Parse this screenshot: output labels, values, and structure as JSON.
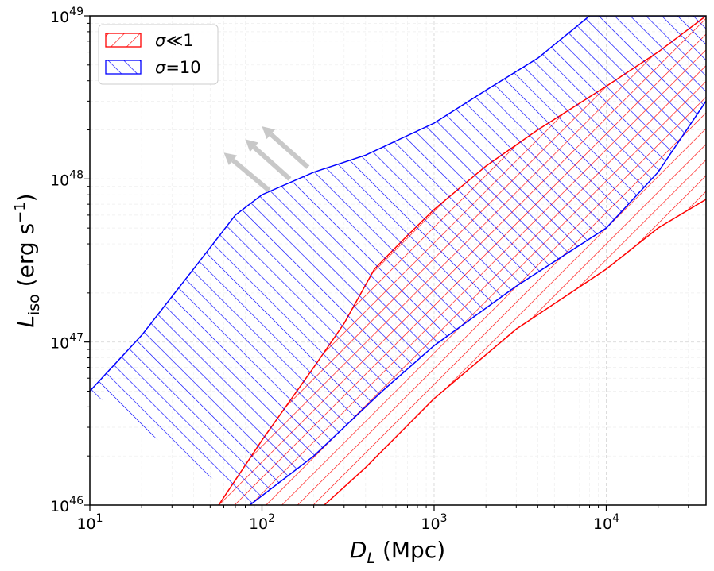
{
  "chart_data": {
    "type": "area",
    "xscale": "log",
    "yscale": "log",
    "xlim": [
      10,
      38000
    ],
    "ylim": [
      1e+46,
      1e+49
    ],
    "xlabel_main": "D",
    "xlabel_sub": "L",
    "xlabel_unit": "(Mpc)",
    "ylabel_main": "L",
    "ylabel_sub": "iso",
    "ylabel_unit_base": "(erg s",
    "ylabel_unit_sup": "−1",
    "ylabel_unit_close": ")",
    "x_ticks": [
      {
        "value": 10,
        "base": "10",
        "exp": "1"
      },
      {
        "value": 100,
        "base": "10",
        "exp": "2"
      },
      {
        "value": 1000,
        "base": "10",
        "exp": "3"
      },
      {
        "value": 10000,
        "base": "10",
        "exp": "4"
      }
    ],
    "y_ticks": [
      {
        "value": 1e+46,
        "base": "10",
        "exp": "46"
      },
      {
        "value": 1e+47,
        "base": "10",
        "exp": "47"
      },
      {
        "value": 1e+48,
        "base": "10",
        "exp": "48"
      },
      {
        "value": 1e+49,
        "base": "10",
        "exp": "49"
      }
    ],
    "grid": true,
    "legend_position": "top-left",
    "series": [
      {
        "name": "σ ≪ 1",
        "legend_symbol": "σ",
        "legend_relation": "≪",
        "legend_value": "1",
        "color": "#ff0000",
        "hatch": "forward",
        "upper": [
          [
            56,
            1e+46
          ],
          [
            100,
            2.5e+46
          ],
          [
            200,
            7e+46
          ],
          [
            300,
            1.3e+47
          ],
          [
            450,
            2.8e+47
          ],
          [
            700,
            4.5e+47
          ],
          [
            1000,
            6.5e+47
          ],
          [
            2000,
            1.2e+48
          ],
          [
            4000,
            2e+48
          ],
          [
            10000,
            3.7e+48
          ],
          [
            20000,
            6e+48
          ],
          [
            38000,
            1e+49
          ]
        ],
        "lower": [
          [
            230,
            1e+46
          ],
          [
            400,
            1.7e+46
          ],
          [
            1000,
            4.5e+46
          ],
          [
            3000,
            1.2e+47
          ],
          [
            10000,
            2.8e+47
          ],
          [
            20000,
            5e+47
          ],
          [
            38000,
            7.5e+47
          ]
        ]
      },
      {
        "name": "σ = 10",
        "legend_symbol": "σ",
        "legend_relation": "=",
        "legend_value": "10",
        "color": "#0000ff",
        "hatch": "backward",
        "upper": [
          [
            10,
            5e+46
          ],
          [
            20,
            1.1e+47
          ],
          [
            40,
            2.8e+47
          ],
          [
            70,
            6e+47
          ],
          [
            100,
            8e+47
          ],
          [
            200,
            1.1e+48
          ],
          [
            400,
            1.4e+48
          ],
          [
            1000,
            2.2e+48
          ],
          [
            2000,
            3.5e+48
          ],
          [
            4000,
            5.5e+48
          ],
          [
            8000,
            1e+49
          ],
          [
            38000,
            1e+49
          ]
        ],
        "lower": [
          [
            85,
            1e+46
          ],
          [
            200,
            2e+46
          ],
          [
            500,
            5e+46
          ],
          [
            1000,
            9.5e+46
          ],
          [
            3000,
            2.2e+47
          ],
          [
            10000,
            5e+47
          ],
          [
            20000,
            1.1e+48
          ],
          [
            38000,
            3e+48
          ]
        ]
      }
    ],
    "annotations": [
      {
        "type": "arrow",
        "color": "#c8c8c8",
        "from": [
          110,
          8.5e+47
        ],
        "to": [
          60,
          1.45e+48
        ]
      },
      {
        "type": "arrow",
        "color": "#c8c8c8",
        "from": [
          145,
          1e+48
        ],
        "to": [
          80,
          1.75e+48
        ]
      },
      {
        "type": "arrow",
        "color": "#c8c8c8",
        "from": [
          185,
          1.18e+48
        ],
        "to": [
          100,
          2.1e+48
        ]
      }
    ]
  }
}
